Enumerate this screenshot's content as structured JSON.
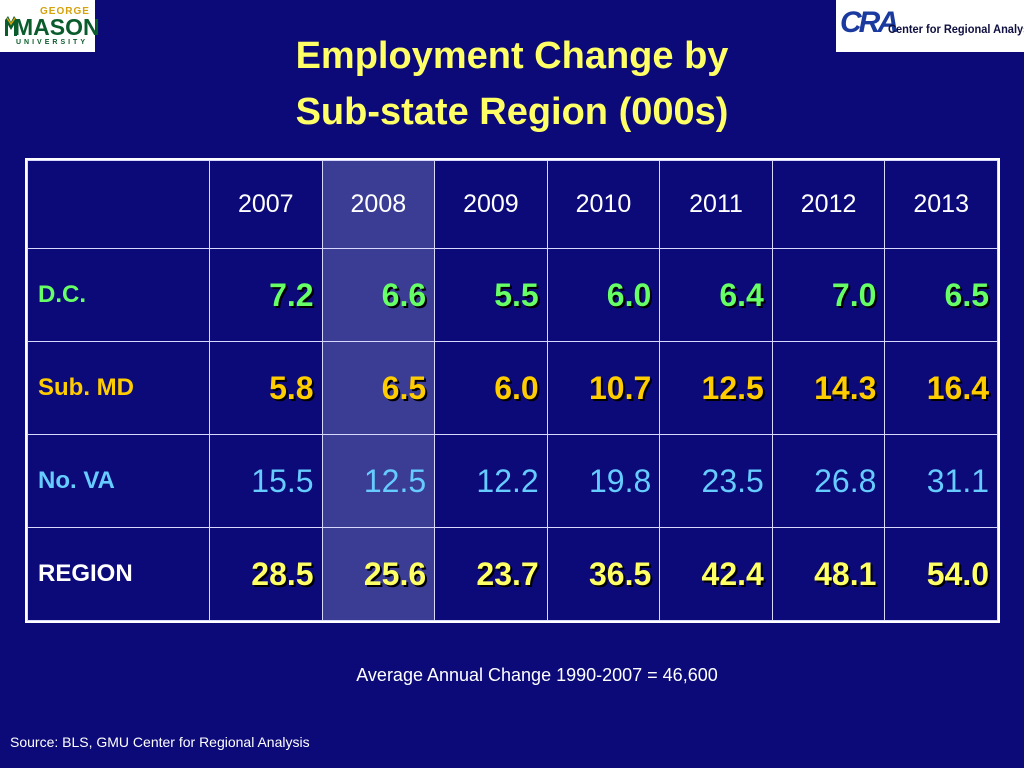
{
  "logos": {
    "left": {
      "george": "GEORGE",
      "mason": "MASON",
      "university": "UNIVERSITY"
    },
    "right": {
      "mark": "CRA",
      "text": "Center for Regional Analysis"
    }
  },
  "title": {
    "line1": "Employment Change by",
    "line2": "Sub-state Region (000s)"
  },
  "table": {
    "headers": [
      "",
      "2007",
      "2008",
      "2009",
      "2010",
      "2011",
      "2012",
      "2013"
    ],
    "highlight_column": "2008",
    "rows": [
      {
        "label": "D.C.",
        "color": "#66ff66",
        "values": [
          "7.2",
          "6.6",
          "5.5",
          "6.0",
          "6.4",
          "7.0",
          "6.5"
        ]
      },
      {
        "label": "Sub. MD",
        "color": "#ffcc00",
        "values": [
          "5.8",
          "6.5",
          "6.0",
          "10.7",
          "12.5",
          "14.3",
          "16.4"
        ]
      },
      {
        "label": "No. VA",
        "color": "#66ccff",
        "values": [
          "15.5",
          "12.5",
          "12.2",
          "19.8",
          "23.5",
          "26.8",
          "31.1"
        ]
      },
      {
        "label": "REGION",
        "color": "#ffff66",
        "label_color": "#ffffff",
        "values": [
          "28.5",
          "25.6",
          "23.7",
          "36.5",
          "42.4",
          "48.1",
          "54.0"
        ]
      }
    ]
  },
  "note": "Average Annual Change 1990-2007 = 46,600",
  "source": "Source: BLS, GMU Center for Regional Analysis",
  "colors": {
    "background": "#0b0a78",
    "title": "#ffff66",
    "highlight": "#3b3d94"
  }
}
